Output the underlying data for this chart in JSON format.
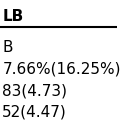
{
  "header": "LB",
  "rows": [
    "B",
    "7.66%(16.25%)",
    "83(4.73)",
    "52(4.47)"
  ],
  "header_fontsize": 11,
  "row_fontsize": 11,
  "bg_color": "#ffffff",
  "text_color": "#000000",
  "line_color": "#000000"
}
